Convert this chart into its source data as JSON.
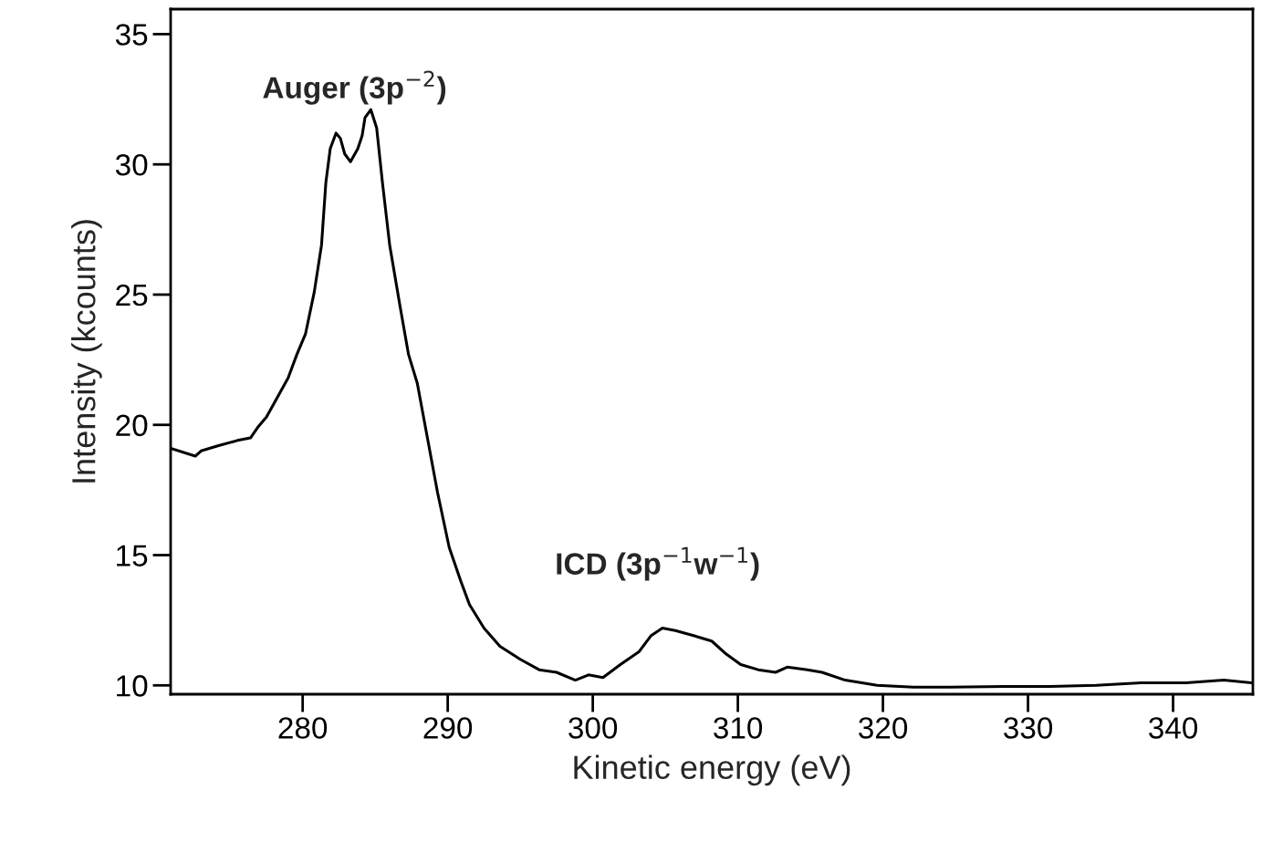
{
  "chart_data": {
    "type": "line",
    "xlabel": "Kinetic energy (eV)",
    "ylabel": "Intensity (kcounts)",
    "annotations": [
      "Auger (3p$^{−2}$)",
      "ICD (3p$^{−1}$w$^{−1}$)"
    ],
    "series": [
      {
        "color": "#000000",
        "x": [
          270.9,
          272.6,
          273.0,
          274.2,
          275.5,
          276.4,
          276.9,
          277.5,
          278.0,
          279.0,
          279.6,
          280.2,
          280.8,
          281.3,
          281.6,
          281.9,
          282.3,
          282.6,
          282.9,
          283.3,
          283.8,
          284.1,
          284.3,
          284.7,
          285.1,
          285.5,
          286.0,
          286.7,
          287.3,
          287.9,
          288.6,
          289.3,
          290.1,
          290.9,
          291.5,
          292.5,
          293.6,
          295.0,
          296.3,
          297.5,
          298.8,
          299.7,
          300.7,
          301.9,
          303.2,
          304.0,
          304.8,
          305.7,
          307.0,
          308.2,
          309.2,
          310.2,
          311.4,
          312.6,
          313.4,
          314.8,
          315.8,
          317.4,
          319.6,
          322.1,
          324.6,
          328.4,
          331.5,
          334.7,
          337.8,
          340.9,
          343.5,
          345.4
        ],
        "values": [
          19.1,
          18.8,
          19.0,
          19.2,
          19.4,
          19.5,
          19.9,
          20.3,
          20.8,
          21.8,
          22.7,
          23.5,
          25.1,
          26.9,
          29.3,
          30.6,
          31.2,
          31.0,
          30.4,
          30.1,
          30.6,
          31.1,
          31.8,
          32.1,
          31.4,
          29.3,
          26.9,
          24.6,
          22.7,
          21.6,
          19.5,
          17.4,
          15.3,
          14.0,
          13.1,
          12.2,
          11.5,
          11.0,
          10.6,
          10.5,
          10.2,
          10.4,
          10.3,
          10.8,
          11.3,
          11.9,
          12.2,
          12.1,
          11.9,
          11.7,
          11.2,
          10.8,
          10.6,
          10.5,
          10.7,
          10.6,
          10.5,
          10.2,
          10.0,
          9.93,
          9.93,
          9.96,
          9.96,
          10.0,
          10.1,
          10.1,
          10.2,
          10.1
        ]
      }
    ],
    "xlim": [
      270.9,
      345.5
    ],
    "ylim": [
      9.66,
      35.96
    ],
    "xticks": [
      280,
      290,
      300,
      310,
      320,
      330,
      340
    ],
    "yticks": [
      10,
      15,
      20,
      25,
      30,
      35
    ],
    "grid": false,
    "legend": false,
    "marker": "none",
    "line_style": "solid"
  }
}
